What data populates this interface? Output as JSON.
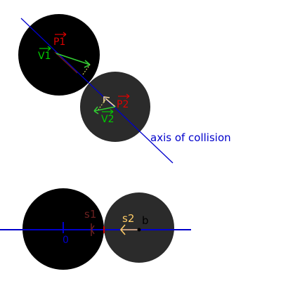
{
  "labels": {
    "p1": "P1",
    "v1": "V1",
    "p2": "P2",
    "v2": "V2",
    "axis": "axis of collision",
    "s1": "s1",
    "s2": "s2",
    "b": "b",
    "origin": "0"
  },
  "colors": {
    "circle_large": "#000000",
    "circle_small": "#2b2b2b",
    "axis_line": "#0000cc",
    "p_label": "#dd0000",
    "v_label": "#00cc00",
    "v1_arrow": "#33cc33",
    "v2_arrow": "#33cc33",
    "s1_label": "#6b2020",
    "s2_label": "#ffcc66",
    "b_label": "#000000",
    "origin_label": "#0000cc"
  }
}
